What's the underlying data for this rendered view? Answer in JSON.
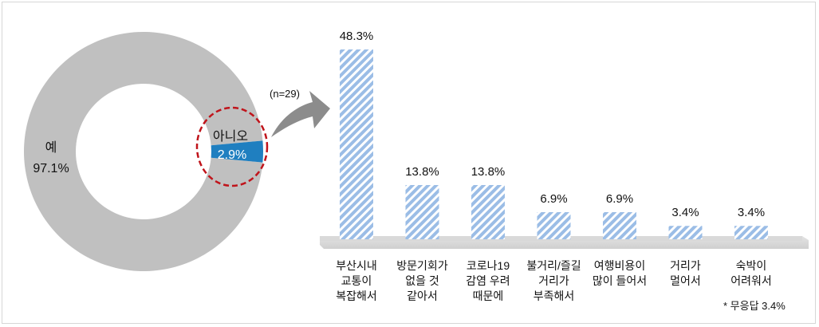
{
  "chart_data": [
    {
      "type": "pie",
      "variant": "donut",
      "slices": [
        {
          "label": "예",
          "value": 97.1,
          "value_text": "97.1%",
          "color": "#c0c0c0"
        },
        {
          "label": "아니오",
          "value": 2.9,
          "value_text": "2.9%",
          "color": "#1f7fc0"
        }
      ]
    },
    {
      "type": "bar",
      "note": "(n=29)",
      "categories": [
        [
          "부산시내",
          "교통이",
          "복잡해서"
        ],
        [
          "방문기회가",
          "없을 것",
          "같아서"
        ],
        [
          "코로나19",
          "감염 우려",
          "때문에"
        ],
        [
          "불거리/즐길",
          "거리가",
          "부족해서"
        ],
        [
          "여행비용이",
          "많이 들어서"
        ],
        [
          "거리가",
          "멀어서"
        ],
        [
          "숙박이",
          "어려워서"
        ]
      ],
      "values": [
        48.3,
        13.8,
        13.8,
        6.9,
        6.9,
        3.4,
        3.4
      ],
      "value_labels": [
        "48.3%",
        "13.8%",
        "13.8%",
        "6.9%",
        "6.9%",
        "3.4%",
        "3.4%"
      ],
      "footnote": "* 무응답 3.4%",
      "colors": {
        "bar": "#9bbde6",
        "stripe": "#ffffff",
        "floor": "#d9d9d9",
        "arrow": "#8c8c8c",
        "highlight": "#c0141b"
      }
    }
  ]
}
